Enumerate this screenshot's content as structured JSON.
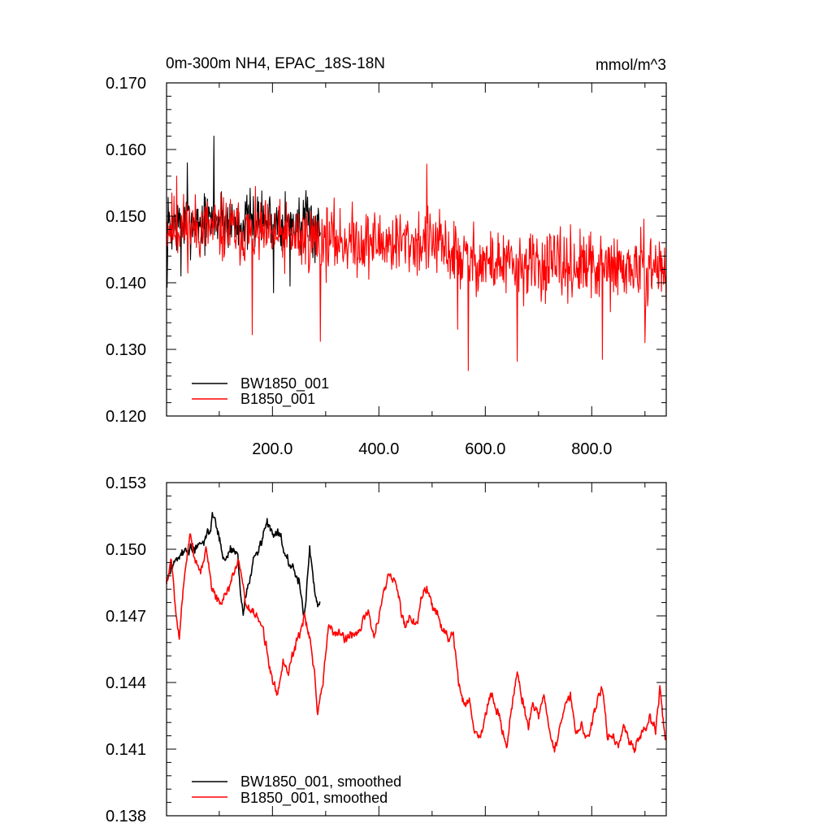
{
  "chart_data": [
    {
      "type": "line",
      "title_left": "0m-300m NH4, EPAC_18S-18N",
      "title_right": "mmol/m^3",
      "xlim": [
        1,
        940
      ],
      "ylim": [
        0.12,
        0.17
      ],
      "yticks": [
        0.12,
        0.13,
        0.14,
        0.15,
        0.16,
        0.17
      ],
      "ytick_labels": [
        "0.120",
        "0.130",
        "0.140",
        "0.150",
        "0.160",
        "0.170"
      ],
      "xticks": [
        200,
        400,
        600,
        800
      ],
      "xtick_labels": [
        "200.0",
        "400.0",
        "600.0",
        "800.0"
      ],
      "legend_position": "bottom-left",
      "series": [
        {
          "name": "BW1850_001",
          "color": "#000000",
          "x_range": [
            1,
            290
          ],
          "anchors": [
            [
              1,
              0.1485
            ],
            [
              50,
              0.149
            ],
            [
              100,
              0.1495
            ],
            [
              150,
              0.149
            ],
            [
              200,
              0.1495
            ],
            [
              250,
              0.1488
            ],
            [
              290,
              0.1482
            ]
          ],
          "noise_amplitude": 0.0065,
          "extremes": [
            [
              90,
              0.162
            ],
            [
              40,
              0.158
            ],
            [
              2,
              0.1393
            ],
            [
              233,
              0.1395
            ],
            [
              202,
              0.1385
            ],
            [
              28,
              0.141
            ],
            [
              280,
              0.143
            ]
          ],
          "seed": 7
        },
        {
          "name": "B1850_001",
          "color": "#ff0000",
          "x_range": [
            1,
            940
          ],
          "anchors": [
            [
              1,
              0.1485
            ],
            [
              100,
              0.148
            ],
            [
              200,
              0.147
            ],
            [
              300,
              0.1465
            ],
            [
              400,
              0.146
            ],
            [
              500,
              0.146
            ],
            [
              560,
              0.1435
            ],
            [
              650,
              0.1425
            ],
            [
              750,
              0.1425
            ],
            [
              850,
              0.142
            ],
            [
              940,
              0.1425
            ]
          ],
          "noise_amplitude": 0.0075,
          "extremes": [
            [
              490,
              0.1578
            ],
            [
              568,
              0.1268
            ],
            [
              162,
              0.1322
            ],
            [
              290,
              0.1312
            ],
            [
              548,
              0.133
            ],
            [
              660,
              0.1282
            ],
            [
              820,
              0.1285
            ],
            [
              900,
              0.131
            ],
            [
              940,
              0.136
            ],
            [
              20,
              0.156
            ]
          ],
          "seed": 11
        }
      ]
    },
    {
      "type": "line",
      "xlim": [
        1,
        940
      ],
      "ylim": [
        0.138,
        0.153
      ],
      "yticks": [
        0.138,
        0.141,
        0.144,
        0.147,
        0.15,
        0.153
      ],
      "ytick_labels": [
        "0.138",
        "0.141",
        "0.144",
        "0.147",
        "0.150",
        "0.153"
      ],
      "legend_position": "bottom-left",
      "series": [
        {
          "name": "BW1850_001, smoothed",
          "color": "#000000",
          "x_range": [
            1,
            290
          ],
          "anchors": [
            [
              1,
              0.1485
            ],
            [
              15,
              0.1495
            ],
            [
              30,
              0.1498
            ],
            [
              45,
              0.15
            ],
            [
              60,
              0.15
            ],
            [
              75,
              0.1505
            ],
            [
              90,
              0.1515
            ],
            [
              100,
              0.1505
            ],
            [
              110,
              0.1495
            ],
            [
              120,
              0.15
            ],
            [
              135,
              0.1498
            ],
            [
              140,
              0.148
            ],
            [
              145,
              0.147
            ],
            [
              150,
              0.148
            ],
            [
              160,
              0.149
            ],
            [
              170,
              0.1498
            ],
            [
              180,
              0.1505
            ],
            [
              190,
              0.1512
            ],
            [
              200,
              0.1508
            ],
            [
              210,
              0.151
            ],
            [
              220,
              0.15
            ],
            [
              230,
              0.1495
            ],
            [
              240,
              0.149
            ],
            [
              250,
              0.1485
            ],
            [
              255,
              0.1478
            ],
            [
              260,
              0.147
            ],
            [
              265,
              0.1485
            ],
            [
              270,
              0.15
            ],
            [
              275,
              0.149
            ],
            [
              280,
              0.148
            ],
            [
              285,
              0.1475
            ],
            [
              290,
              0.1478
            ]
          ],
          "noise_amplitude": 0.0007,
          "seed": 3
        },
        {
          "name": "B1850_001, smoothed",
          "color": "#ff0000",
          "x_range": [
            1,
            940
          ],
          "anchors": [
            [
              1,
              0.1485
            ],
            [
              10,
              0.1495
            ],
            [
              20,
              0.147
            ],
            [
              25,
              0.146
            ],
            [
              35,
              0.149
            ],
            [
              45,
              0.1508
            ],
            [
              55,
              0.1495
            ],
            [
              65,
              0.149
            ],
            [
              75,
              0.15
            ],
            [
              85,
              0.1485
            ],
            [
              95,
              0.1478
            ],
            [
              105,
              0.1475
            ],
            [
              115,
              0.148
            ],
            [
              125,
              0.1488
            ],
            [
              135,
              0.1495
            ],
            [
              145,
              0.1485
            ],
            [
              150,
              0.1475
            ],
            [
              160,
              0.147
            ],
            [
              170,
              0.147
            ],
            [
              180,
              0.1465
            ],
            [
              190,
              0.1455
            ],
            [
              200,
              0.144
            ],
            [
              210,
              0.1435
            ],
            [
              220,
              0.145
            ],
            [
              230,
              0.1445
            ],
            [
              240,
              0.1455
            ],
            [
              250,
              0.1462
            ],
            [
              260,
              0.147
            ],
            [
              270,
              0.146
            ],
            [
              280,
              0.144
            ],
            [
              285,
              0.1425
            ],
            [
              295,
              0.144
            ],
            [
              305,
              0.1465
            ],
            [
              320,
              0.1462
            ],
            [
              340,
              0.146
            ],
            [
              360,
              0.1463
            ],
            [
              380,
              0.1472
            ],
            [
              390,
              0.146
            ],
            [
              400,
              0.147
            ],
            [
              410,
              0.148
            ],
            [
              420,
              0.149
            ],
            [
              430,
              0.1485
            ],
            [
              440,
              0.1475
            ],
            [
              450,
              0.1465
            ],
            [
              460,
              0.147
            ],
            [
              470,
              0.1465
            ],
            [
              480,
              0.1478
            ],
            [
              490,
              0.1482
            ],
            [
              500,
              0.1475
            ],
            [
              510,
              0.147
            ],
            [
              520,
              0.1465
            ],
            [
              530,
              0.146
            ],
            [
              540,
              0.146
            ],
            [
              550,
              0.144
            ],
            [
              560,
              0.143
            ],
            [
              570,
              0.1432
            ],
            [
              580,
              0.1418
            ],
            [
              590,
              0.1415
            ],
            [
              600,
              0.1425
            ],
            [
              610,
              0.1435
            ],
            [
              620,
              0.1428
            ],
            [
              630,
              0.142
            ],
            [
              640,
              0.141
            ],
            [
              650,
              0.143
            ],
            [
              660,
              0.1445
            ],
            [
              670,
              0.1432
            ],
            [
              680,
              0.142
            ],
            [
              690,
              0.143
            ],
            [
              700,
              0.1425
            ],
            [
              710,
              0.1435
            ],
            [
              720,
              0.142
            ],
            [
              730,
              0.141
            ],
            [
              740,
              0.1418
            ],
            [
              750,
              0.143
            ],
            [
              760,
              0.1435
            ],
            [
              770,
              0.1415
            ],
            [
              780,
              0.142
            ],
            [
              790,
              0.1415
            ],
            [
              800,
              0.142
            ],
            [
              810,
              0.1432
            ],
            [
              820,
              0.1438
            ],
            [
              830,
              0.1415
            ],
            [
              840,
              0.1418
            ],
            [
              850,
              0.1412
            ],
            [
              860,
              0.142
            ],
            [
              870,
              0.1415
            ],
            [
              880,
              0.141
            ],
            [
              890,
              0.1415
            ],
            [
              900,
              0.142
            ],
            [
              910,
              0.1425
            ],
            [
              920,
              0.142
            ],
            [
              928,
              0.144
            ],
            [
              935,
              0.142
            ],
            [
              940,
              0.1415
            ]
          ],
          "noise_amplitude": 0.0007,
          "seed": 5
        }
      ]
    }
  ]
}
